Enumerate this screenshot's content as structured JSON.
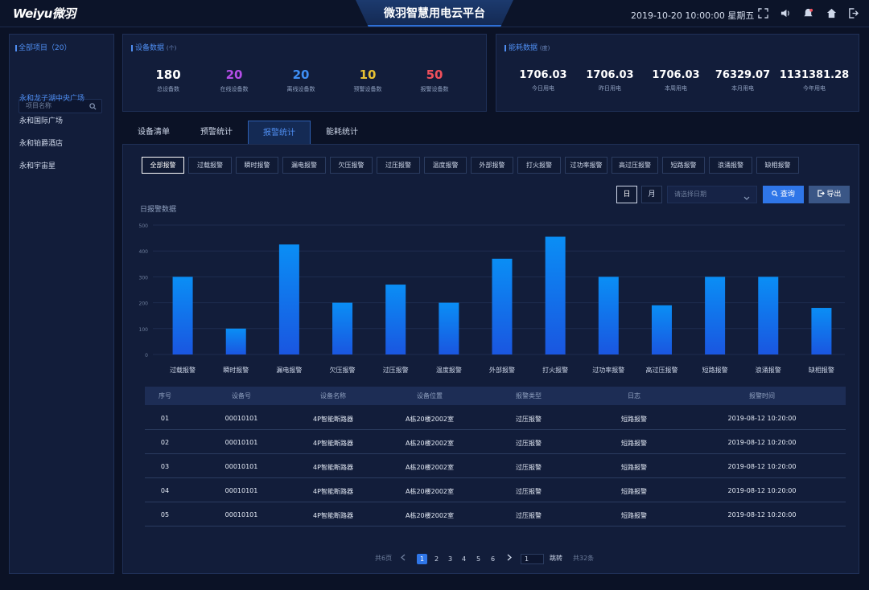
{
  "header": {
    "logo": "Weiyu微羽",
    "title": "微羽智慧用电云平台",
    "datetime": "2019-10-20  10:00:00  星期五",
    "icons": [
      "fullscreen-icon",
      "volume-icon",
      "bell-icon",
      "home-icon",
      "logout-icon"
    ]
  },
  "sidebar": {
    "heading": "全部项目（20）",
    "search_placeholder": "项目名称",
    "items": [
      {
        "label": "永和龙子湖中央广场",
        "active": true
      },
      {
        "label": "永和国际广场",
        "active": false
      },
      {
        "label": "永和铂爵酒店",
        "active": false
      },
      {
        "label": "永和宇宙星",
        "active": false
      }
    ]
  },
  "device_panel": {
    "title": "设备数据",
    "unit": "(个)",
    "stats": [
      {
        "value": "180",
        "label": "总设备数",
        "color": "#ffffff"
      },
      {
        "value": "20",
        "label": "在线设备数",
        "color": "#b44ee8"
      },
      {
        "value": "20",
        "label": "离线设备数",
        "color": "#3e8ef5"
      },
      {
        "value": "10",
        "label": "预警设备数",
        "color": "#e8c233"
      },
      {
        "value": "50",
        "label": "报警设备数",
        "color": "#ef4f5b"
      }
    ]
  },
  "energy_panel": {
    "title": "能耗数据",
    "unit": "(度)",
    "stats": [
      {
        "value": "1706.03",
        "label": "今日用电"
      },
      {
        "value": "1706.03",
        "label": "昨日用电"
      },
      {
        "value": "1706.03",
        "label": "本周用电"
      },
      {
        "value": "76329.07",
        "label": "本月用电"
      },
      {
        "value": "1131381.28",
        "label": "今年用电"
      }
    ]
  },
  "tabs": [
    {
      "label": "设备清单",
      "active": false
    },
    {
      "label": "预警统计",
      "active": false
    },
    {
      "label": "报警统计",
      "active": true
    },
    {
      "label": "能耗统计",
      "active": false
    }
  ],
  "filters": [
    {
      "label": "全部报警",
      "active": true
    },
    {
      "label": "过载报警"
    },
    {
      "label": "瞬时报警"
    },
    {
      "label": "漏电报警"
    },
    {
      "label": "欠压报警"
    },
    {
      "label": "过压报警"
    },
    {
      "label": "温度报警"
    },
    {
      "label": "外部报警"
    },
    {
      "label": "打火报警"
    },
    {
      "label": "过功率报警"
    },
    {
      "label": "高过压报警"
    },
    {
      "label": "短路报警"
    },
    {
      "label": "浪涌报警"
    },
    {
      "label": "缺相报警"
    }
  ],
  "controls": {
    "day_label": "日",
    "month_label": "月",
    "date_placeholder": "请选择日期",
    "query_label": "查询",
    "export_label": "导出"
  },
  "chart_data": {
    "type": "bar",
    "title": "日报警数据",
    "categories": [
      "过载报警",
      "瞬时报警",
      "漏电报警",
      "欠压报警",
      "过压报警",
      "温度报警",
      "外部报警",
      "打火报警",
      "过功率报警",
      "高过压报警",
      "短路报警",
      "浪涌报警",
      "缺相报警"
    ],
    "values": [
      300,
      100,
      425,
      200,
      270,
      200,
      370,
      455,
      300,
      190,
      300,
      300,
      180
    ],
    "yticks": [
      "0",
      "100",
      "200",
      "300",
      "400",
      "500"
    ],
    "ylim": [
      0,
      500
    ],
    "colors": {
      "top": "#0a8ef5",
      "bottom": "#1a56e0"
    }
  },
  "table": {
    "headers": [
      "序号",
      "设备号",
      "设备名称",
      "设备位置",
      "报警类型",
      "日志",
      "报警时间"
    ],
    "rows": [
      [
        "01",
        "00010101",
        "4P智能断路器",
        "A栋20楼2002室",
        "过压报警",
        "短路报警",
        "2019-08-12 10:20:00"
      ],
      [
        "02",
        "00010101",
        "4P智能断路器",
        "A栋20楼2002室",
        "过压报警",
        "短路报警",
        "2019-08-12 10:20:00"
      ],
      [
        "03",
        "00010101",
        "4P智能断路器",
        "A栋20楼2002室",
        "过压报警",
        "短路报警",
        "2019-08-12 10:20:00"
      ],
      [
        "04",
        "00010101",
        "4P智能断路器",
        "A栋20楼2002室",
        "过压报警",
        "短路报警",
        "2019-08-12 10:20:00"
      ],
      [
        "05",
        "00010101",
        "4P智能断路器",
        "A栋20楼2002室",
        "过压报警",
        "短路报警",
        "2019-08-12 10:20:00"
      ]
    ]
  },
  "pagination": {
    "pages_total": "共6页",
    "pages": [
      "1",
      "2",
      "3",
      "4",
      "5",
      "6"
    ],
    "current": "1",
    "goto_value": "1",
    "jump_label": "跳转",
    "items_total": "共32条"
  }
}
